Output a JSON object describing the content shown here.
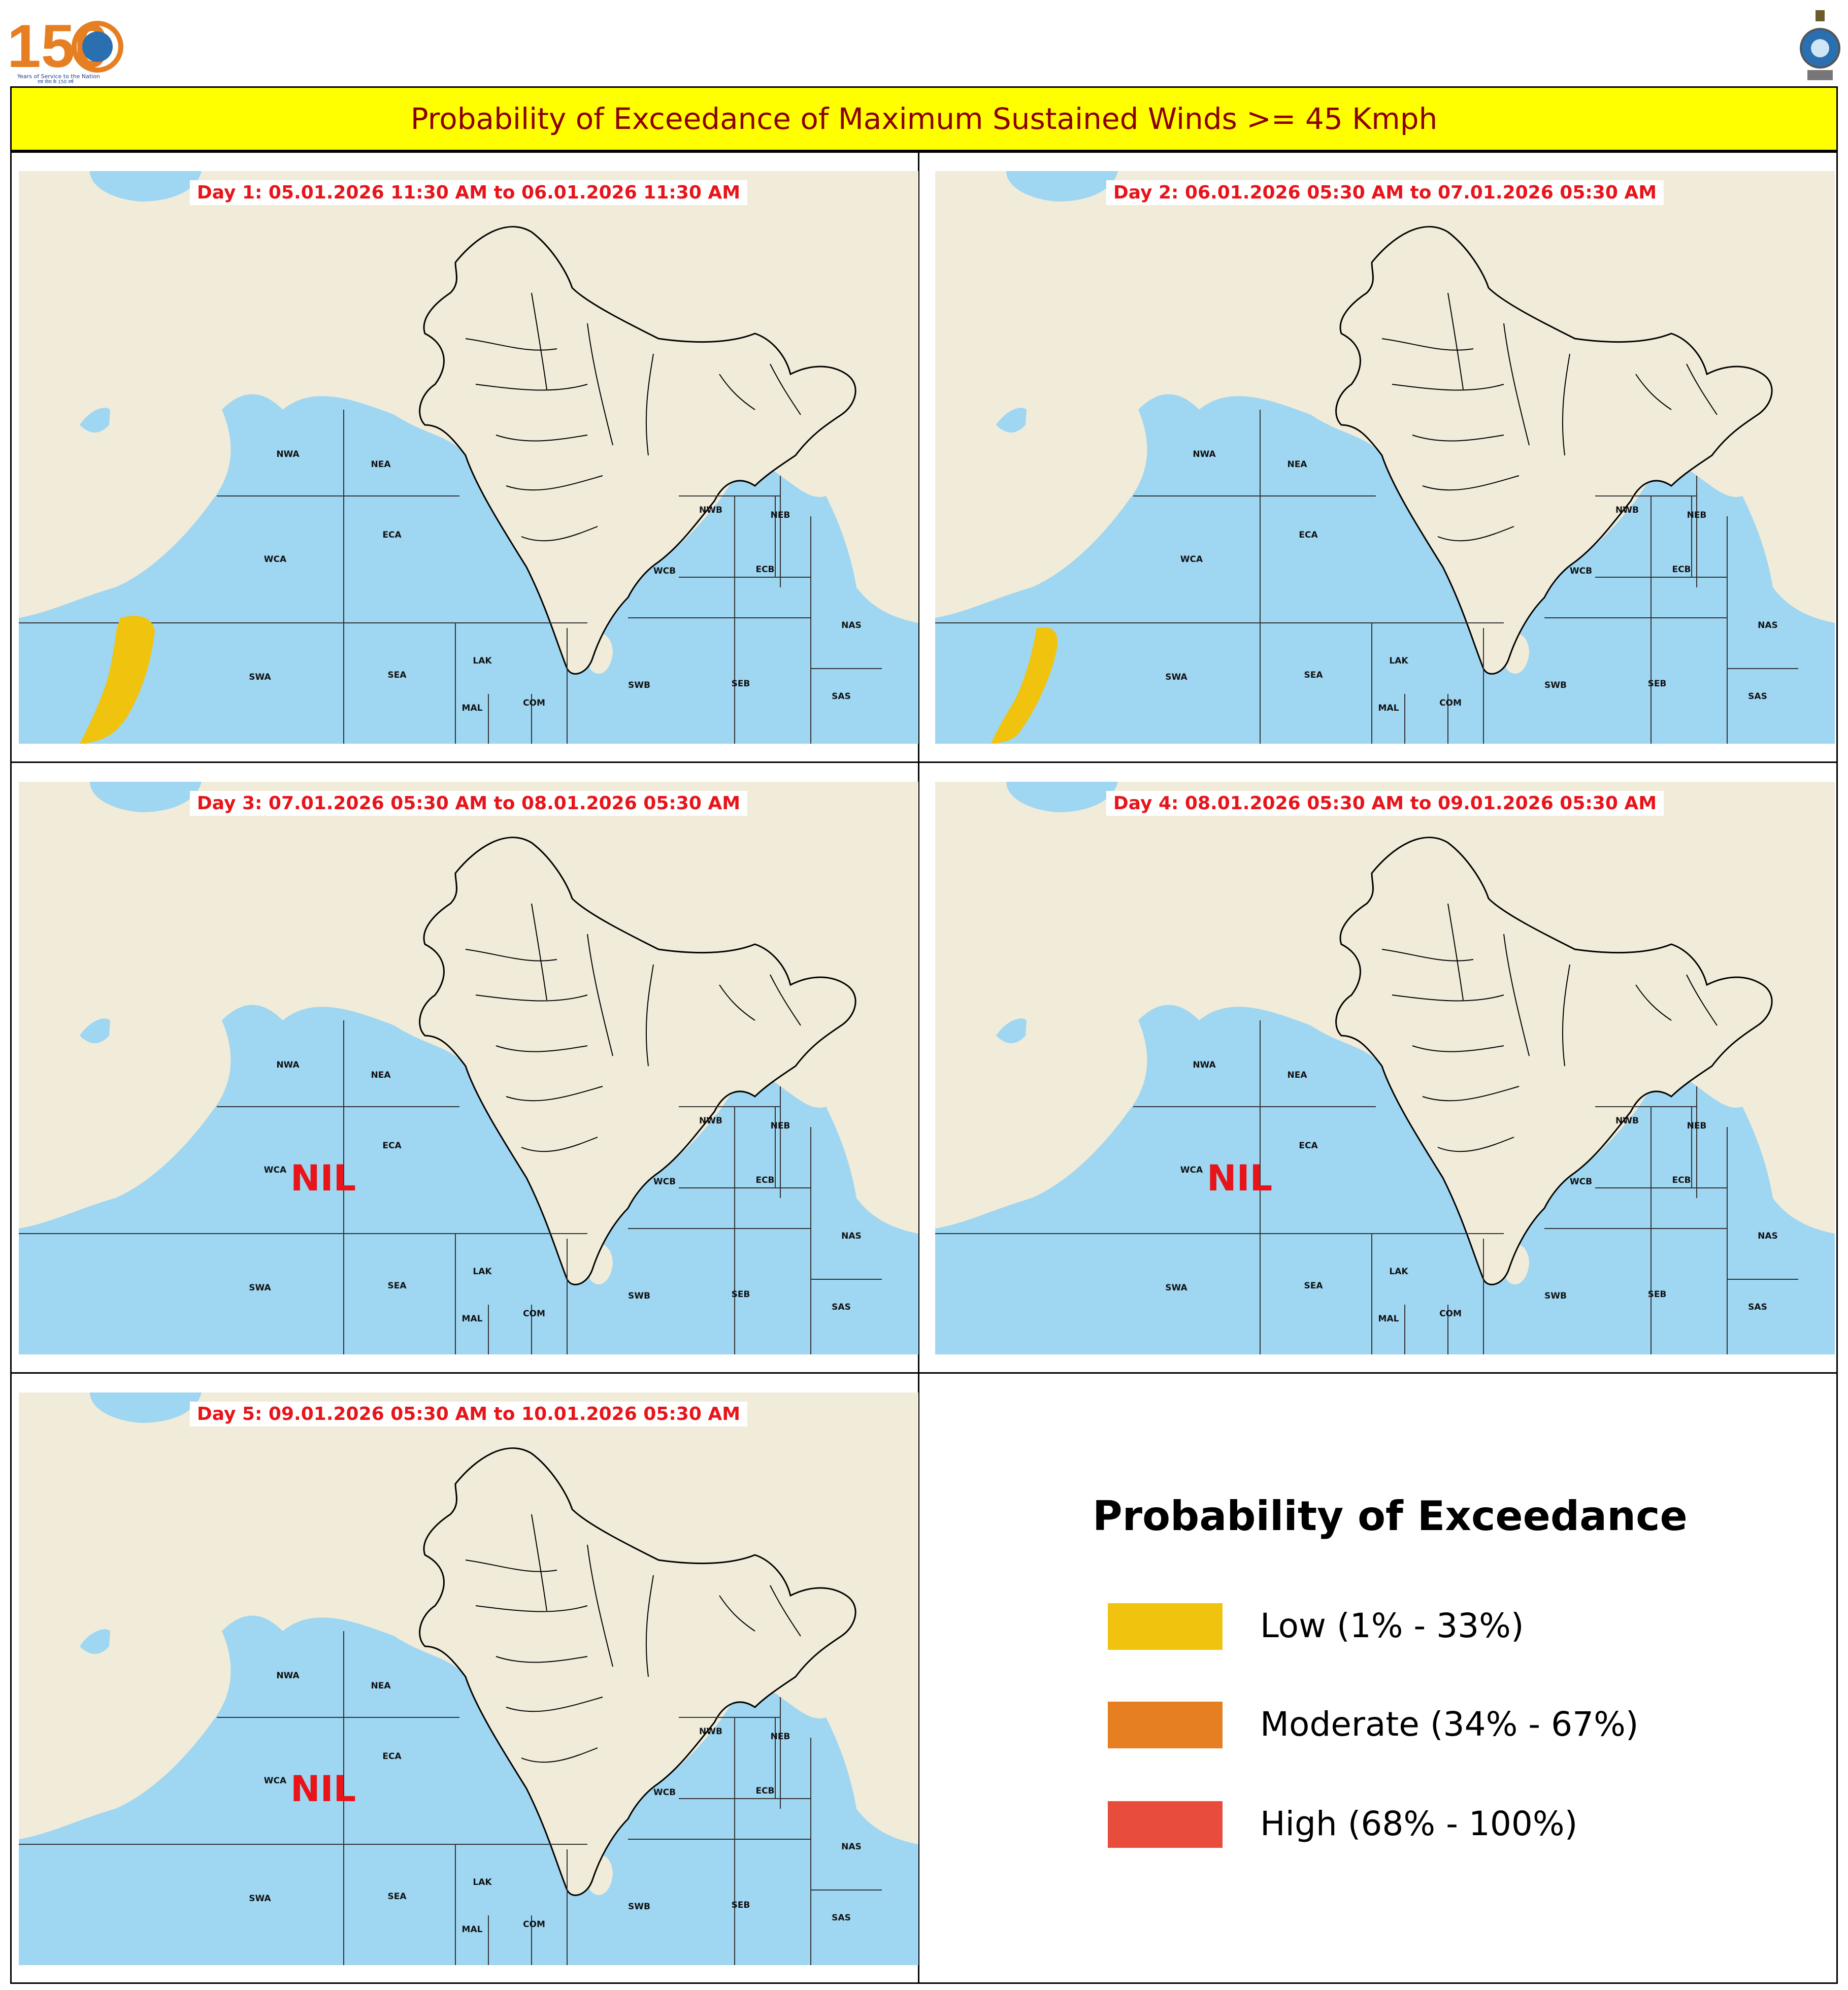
{
  "header": {
    "logo_left": {
      "text": "150",
      "tagline": "Years of Service to the Nation",
      "hindi_tagline": "राष्ट्र सेवा के 150 वर्ष"
    },
    "logo_right": "imd-emblem-icon",
    "title": "Probability of Exceedance of Maximum Sustained Winds >= 45 Kmph"
  },
  "zones": [
    "NWA",
    "NEA",
    "WCA",
    "ECA",
    "SWA",
    "SEA",
    "LAK",
    "MAL",
    "COM",
    "NWB",
    "NEB",
    "WCB",
    "ECB",
    "SWB",
    "SEB",
    "NAS",
    "SAS"
  ],
  "panels": [
    {
      "label": "Day 1: 05.01.2026 11:30 AM to 06.01.2026 11:30 AM",
      "nil": "",
      "probability": "Low",
      "region": "SWA"
    },
    {
      "label": "Day 2: 06.01.2026 05:30 AM to 07.01.2026 05:30 AM",
      "nil": "",
      "probability": "Low",
      "region": "SWA"
    },
    {
      "label": "Day 3: 07.01.2026 05:30 AM to 08.01.2026 05:30 AM",
      "nil": "NIL",
      "probability": "",
      "region": ""
    },
    {
      "label": "Day 4: 08.01.2026 05:30 AM to 09.01.2026 05:30 AM",
      "nil": "NIL",
      "probability": "",
      "region": ""
    },
    {
      "label": "Day 5: 09.01.2026 05:30 AM to 10.01.2026 05:30 AM",
      "nil": "NIL",
      "probability": "",
      "region": ""
    }
  ],
  "legend": {
    "title": "Probability of Exceedance",
    "items": [
      {
        "label": "Low (1% - 33%)",
        "color": "#f0c30f"
      },
      {
        "label": "Moderate (34% - 67%)",
        "color": "#e67e22"
      },
      {
        "label": "High (68% - 100%)",
        "color": "#e74c3c"
      }
    ]
  },
  "colors": {
    "title_bg": "#ffff00",
    "title_text": "#8b0000",
    "day_label": "#e8141a",
    "sea": "#9fd6f2",
    "land": "#f1ecd9"
  }
}
